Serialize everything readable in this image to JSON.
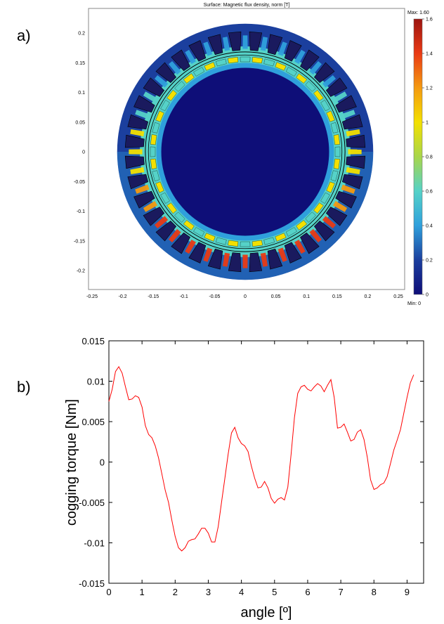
{
  "panel_a": {
    "label": "a)",
    "chart_data": {
      "type": "heatmap",
      "title": "Surface: Magnetic flux density, norm [T]",
      "x_ticks": [
        "-0.25",
        "-0.2",
        "-0.15",
        "-0.1",
        "-0.05",
        "0",
        "0.05",
        "0.1",
        "0.15",
        "0.2",
        "0.25"
      ],
      "y_ticks": [
        "0.2",
        "0.15",
        "0.1",
        "0.05",
        "0",
        "-0.05",
        "-0.1",
        "-0.15",
        "-0.2"
      ],
      "xlim": [
        -0.26,
        0.26
      ],
      "ylim": [
        -0.23,
        0.23
      ],
      "colorbar": {
        "max_label": "Max: 1.60",
        "min_label": "Min: 0",
        "ticks": [
          "1.6",
          "1.4",
          "1.2",
          "1",
          "0.8",
          "0.6",
          "0.4",
          "0.2",
          "0"
        ],
        "range": [
          0,
          1.6
        ],
        "colors": [
          "#0e0e78",
          "#1b3f9e",
          "#2fa0dc",
          "#55d2c8",
          "#a8d64a",
          "#f3e000",
          "#f49a10",
          "#ea3a14",
          "#9c1410"
        ]
      },
      "geometry": {
        "stator_outer_radius": 0.209,
        "stator_inner_radius": 0.163,
        "airgap_radius": 0.158,
        "rotor_outer_radius": 0.155,
        "rotor_core_radius": 0.145,
        "slot_count": 36,
        "magnet_count": 48
      }
    }
  },
  "panel_b": {
    "label": "b)",
    "chart_data": {
      "type": "line",
      "xlabel": "angle [º]",
      "ylabel": "cogging torque [Nm]",
      "xlim": [
        0,
        9.5
      ],
      "ylim": [
        -0.015,
        0.015
      ],
      "x_ticks": [
        "0",
        "1",
        "2",
        "3",
        "4",
        "5",
        "6",
        "7",
        "8",
        "9"
      ],
      "y_ticks": [
        "0.015",
        "0.01",
        "0.005",
        "0",
        "-0.005",
        "-0.01",
        "-0.015"
      ],
      "color": "#ff0000",
      "series": [
        {
          "x": [
            0,
            0.1,
            0.2,
            0.3,
            0.4,
            0.5,
            0.6,
            0.7,
            0.8,
            0.9,
            1.0,
            1.1,
            1.2,
            1.3,
            1.4,
            1.5,
            1.6,
            1.7,
            1.8,
            1.9,
            2.0,
            2.1,
            2.2,
            2.3,
            2.4,
            2.5,
            2.6,
            2.7,
            2.8,
            2.9,
            3.0,
            3.1,
            3.2,
            3.3,
            3.4,
            3.5,
            3.6,
            3.7,
            3.8,
            3.9,
            4.0,
            4.1,
            4.2,
            4.3,
            4.4,
            4.5,
            4.6,
            4.7,
            4.8,
            4.9,
            5.0,
            5.1,
            5.2,
            5.3,
            5.4,
            5.5,
            5.6,
            5.7,
            5.8,
            5.9,
            6.0,
            6.1,
            6.2,
            6.3,
            6.4,
            6.5,
            6.6,
            6.7,
            6.8,
            6.9,
            7.0,
            7.1,
            7.2,
            7.3,
            7.4,
            7.5,
            7.6,
            7.7,
            7.8,
            7.9,
            8.0,
            8.1,
            8.2,
            8.3,
            8.4,
            8.5,
            8.6,
            8.7,
            8.8,
            8.9,
            9.0,
            9.1,
            9.2
          ],
          "y": [
            0.0075,
            0.009,
            0.0112,
            0.0118,
            0.011,
            0.0093,
            0.0077,
            0.0078,
            0.0082,
            0.008,
            0.0068,
            0.0045,
            0.0034,
            0.003,
            0.002,
            0.0005,
            -0.0015,
            -0.0035,
            -0.005,
            -0.0072,
            -0.0092,
            -0.0106,
            -0.011,
            -0.0106,
            -0.0098,
            -0.0096,
            -0.0095,
            -0.0089,
            -0.0082,
            -0.0082,
            -0.0088,
            -0.0099,
            -0.0099,
            -0.008,
            -0.005,
            -0.002,
            0.001,
            0.0036,
            0.0043,
            0.003,
            0.0023,
            0.002,
            0.0013,
            -0.0005,
            -0.002,
            -0.0032,
            -0.0031,
            -0.0024,
            -0.0032,
            -0.0045,
            -0.0051,
            -0.0046,
            -0.0044,
            -0.0047,
            -0.0031,
            0.001,
            0.0055,
            0.0085,
            0.0093,
            0.0095,
            0.009,
            0.0088,
            0.0093,
            0.0097,
            0.0094,
            0.0087,
            0.0095,
            0.0102,
            0.008,
            0.0042,
            0.0043,
            0.0047,
            0.0037,
            0.0026,
            0.0028,
            0.0037,
            0.004,
            0.0028,
            0.0006,
            -0.0022,
            -0.0034,
            -0.0032,
            -0.0028,
            -0.0026,
            -0.0018,
            -0.0002,
            0.0015,
            0.0027,
            0.004,
            0.006,
            0.008,
            0.0098,
            0.0108
          ]
        }
      ]
    }
  }
}
